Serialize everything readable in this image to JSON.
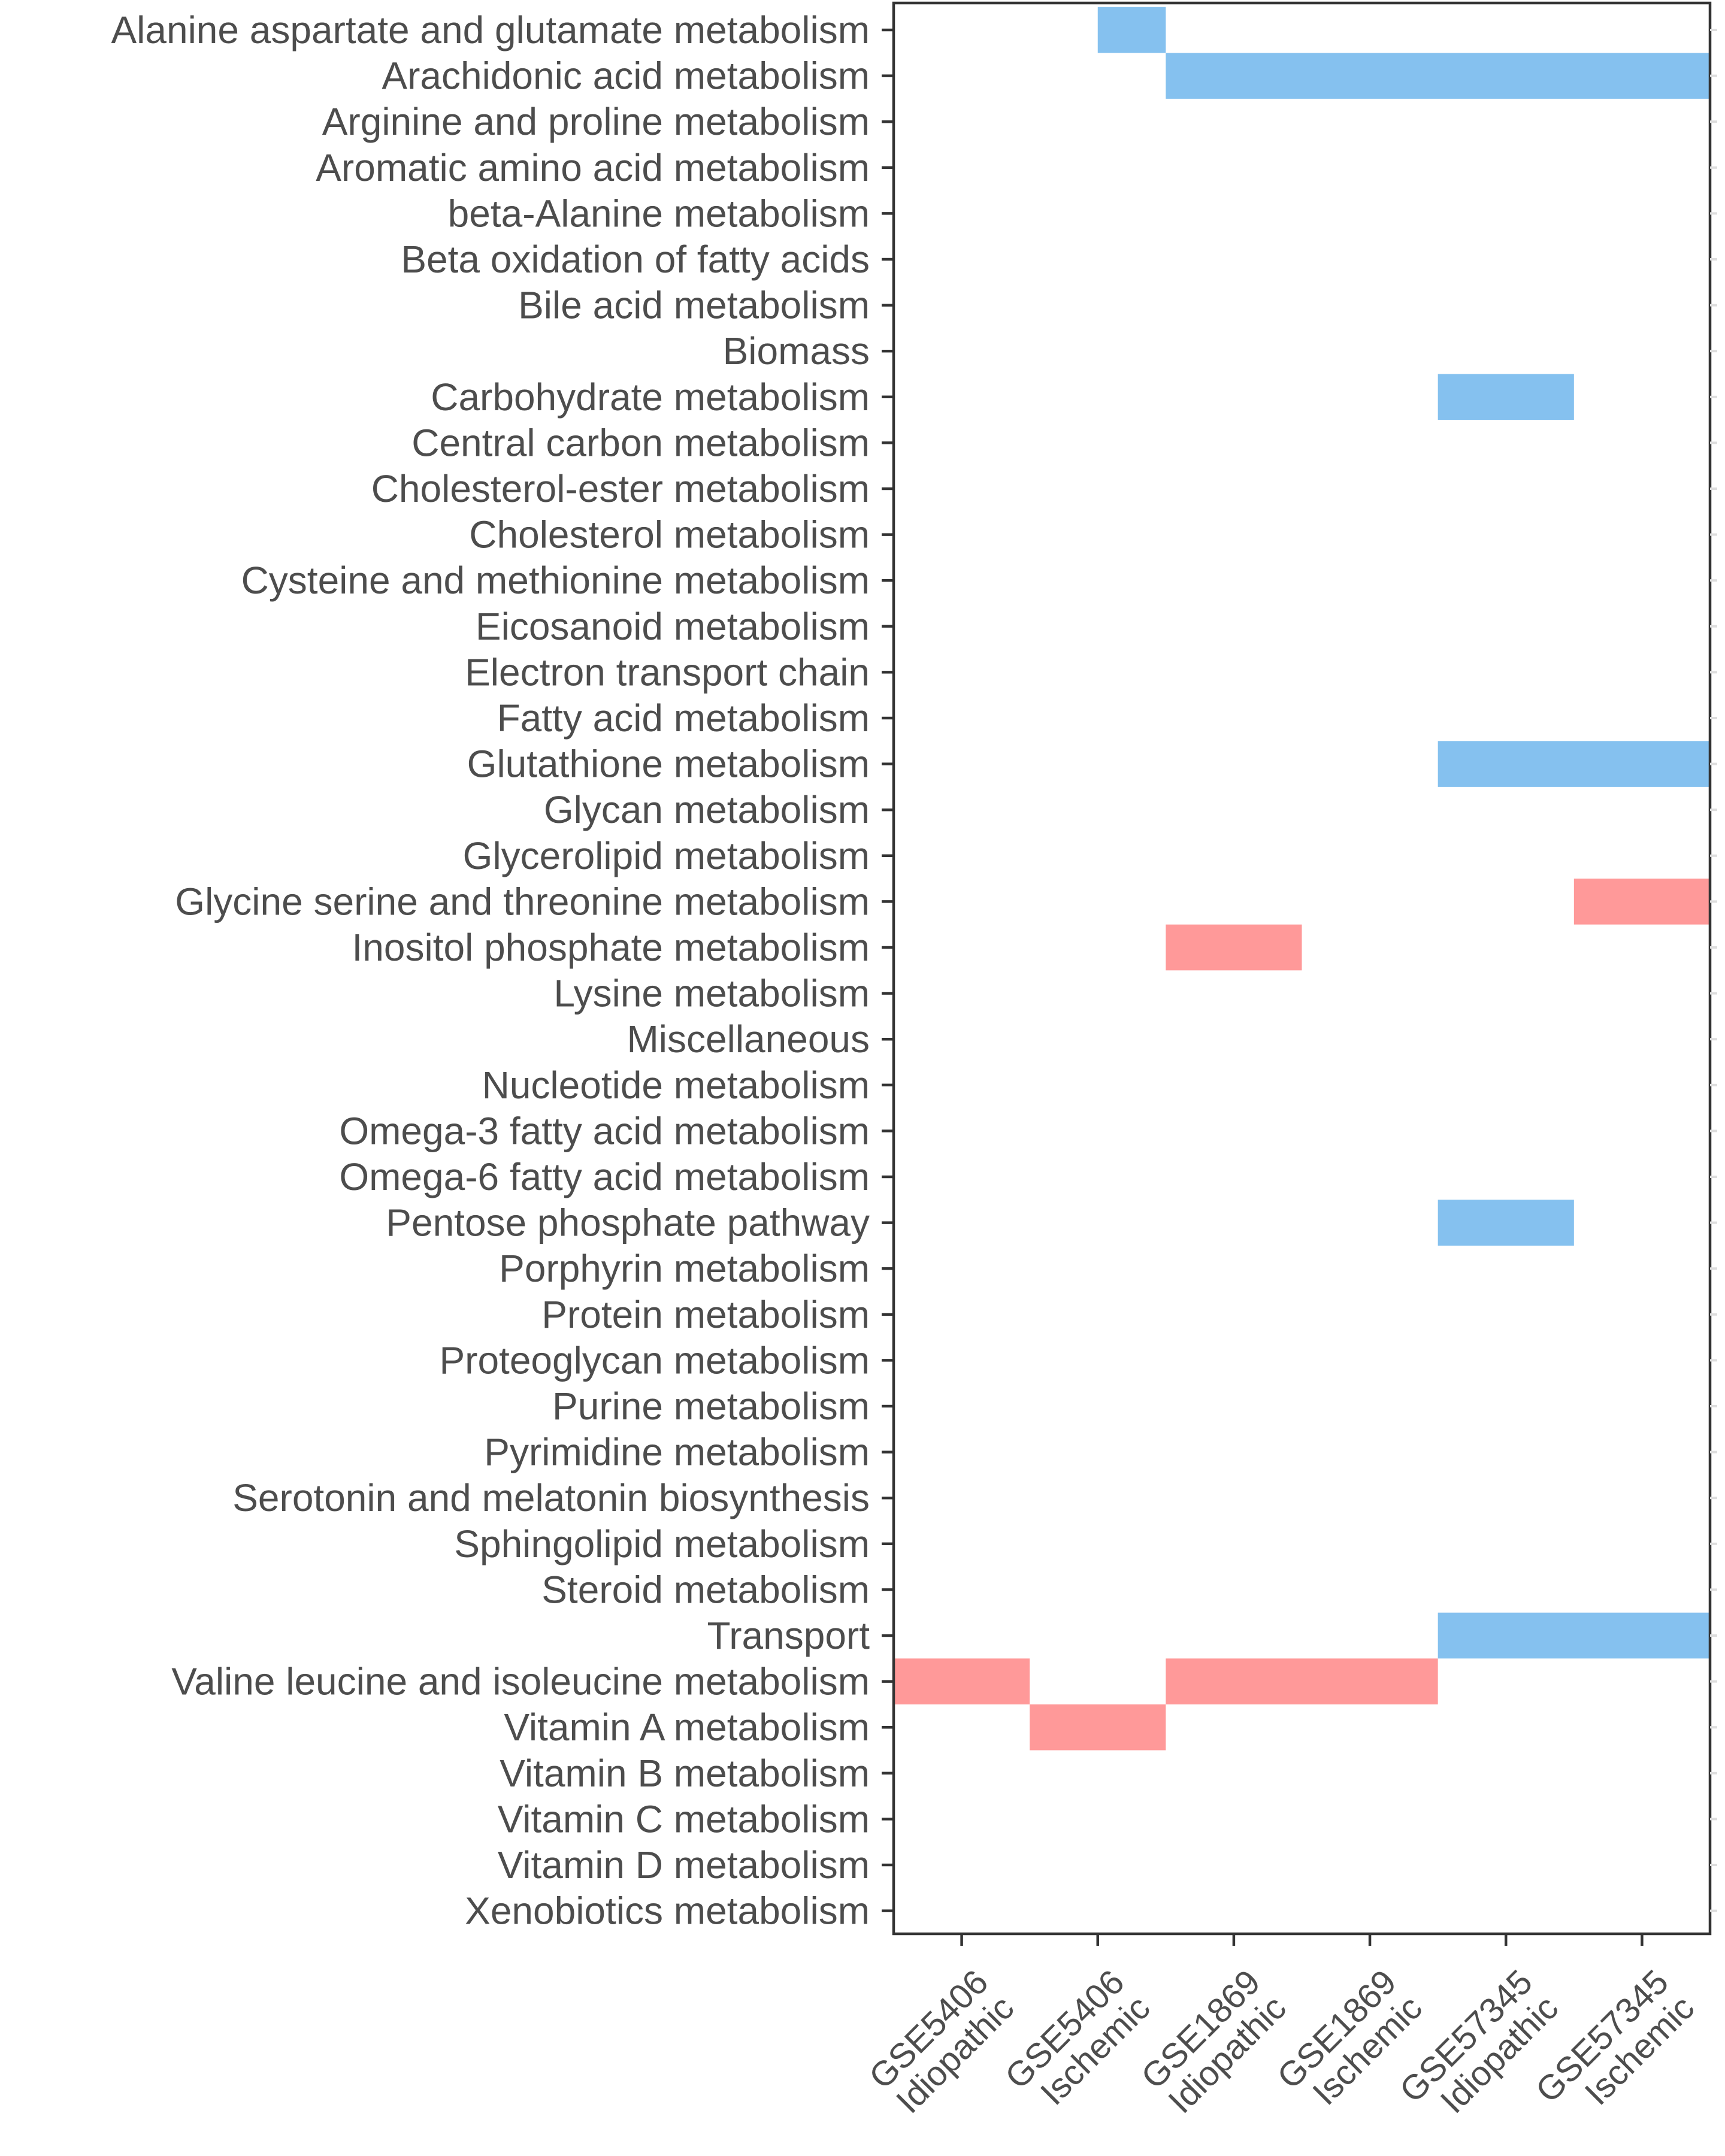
{
  "chart_data": {
    "type": "heatmap",
    "title": "",
    "xlabel": "",
    "ylabel": "",
    "legend": "none",
    "grid": false,
    "colors": {
      "up": "#ff9999",
      "down": "#85c1ef",
      "axis": "#333333",
      "text": "#4d4d4d"
    },
    "x": [
      [
        "GSE5406",
        "Idiopathic"
      ],
      [
        "GSE5406",
        "Ischemic"
      ],
      [
        "GSE1869",
        "Idiopathic"
      ],
      [
        "GSE1869",
        "Ischemic"
      ],
      [
        "GSE57345",
        "Idiopathic"
      ],
      [
        "GSE57345",
        "Ischemic"
      ]
    ],
    "y": [
      "Alanine aspartate and glutamate metabolism",
      "Arachidonic acid metabolism",
      "Arginine and proline metabolism",
      "Aromatic amino acid metabolism",
      "beta-Alanine metabolism",
      "Beta oxidation of fatty acids",
      "Bile acid metabolism",
      "Biomass",
      "Carbohydrate metabolism",
      "Central carbon metabolism",
      "Cholesterol-ester metabolism",
      "Cholesterol metabolism",
      "Cysteine and methionine metabolism",
      "Eicosanoid metabolism",
      "Electron transport chain",
      "Fatty acid metabolism",
      "Glutathione metabolism",
      "Glycan metabolism",
      "Glycerolipid metabolism",
      "Glycine serine and threonine metabolism",
      "Inositol phosphate metabolism",
      "Lysine metabolism",
      "Miscellaneous",
      "Nucleotide metabolism",
      "Omega-3 fatty acid metabolism",
      "Omega-6 fatty acid metabolism",
      "Pentose phosphate pathway",
      "Porphyrin metabolism",
      "Protein metabolism",
      "Proteoglycan metabolism",
      "Purine metabolism",
      "Pyrimidine metabolism",
      "Serotonin and melatonin biosynthesis",
      "Sphingolipid metabolism",
      "Steroid metabolism",
      "Transport",
      "Valine leucine and isoleucine metabolism",
      "Vitamin A metabolism",
      "Vitamin B metabolism",
      "Vitamin C metabolism",
      "Vitamin D metabolism",
      "Xenobiotics metabolism"
    ],
    "cells": [
      {
        "row": 0,
        "col_start": 1,
        "col_end": 1.5,
        "status": "down"
      },
      {
        "row": 1,
        "col_start": 1.5,
        "col_end": 5.5,
        "status": "down"
      },
      {
        "row": 8,
        "col_start": 3.5,
        "col_end": 4.5,
        "status": "down"
      },
      {
        "row": 16,
        "col_start": 3.5,
        "col_end": 5.5,
        "status": "down"
      },
      {
        "row": 19,
        "col_start": 4.5,
        "col_end": 5.5,
        "status": "up"
      },
      {
        "row": 20,
        "col_start": 1.5,
        "col_end": 2.5,
        "status": "up"
      },
      {
        "row": 26,
        "col_start": 3.5,
        "col_end": 4.5,
        "status": "down"
      },
      {
        "row": 35,
        "col_start": 3.5,
        "col_end": 5.5,
        "status": "down"
      },
      {
        "row": 36,
        "col_start": -0.5,
        "col_end": 0.5,
        "status": "up"
      },
      {
        "row": 36,
        "col_start": 1.5,
        "col_end": 3.5,
        "status": "up"
      },
      {
        "row": 37,
        "col_start": 0.5,
        "col_end": 1.5,
        "status": "up"
      }
    ]
  }
}
